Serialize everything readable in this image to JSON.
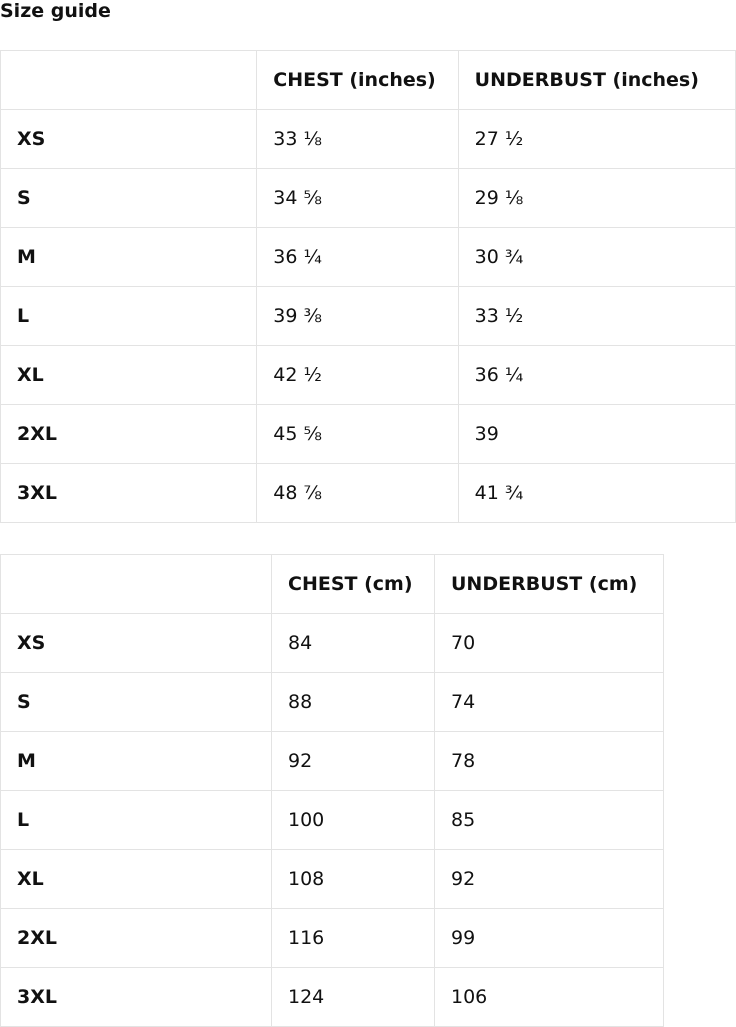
{
  "title": "Size guide",
  "inches_table": {
    "headers": [
      "",
      "CHEST (inches)",
      "UNDERBUST (inches)"
    ],
    "rows": [
      [
        "XS",
        "33 ⅛",
        "27 ½"
      ],
      [
        "S",
        "34 ⅝",
        "29 ⅛"
      ],
      [
        "M",
        "36 ¼",
        "30 ¾"
      ],
      [
        "L",
        "39 ⅜",
        "33 ½"
      ],
      [
        "XL",
        "42 ½",
        "36 ¼"
      ],
      [
        "2XL",
        "45 ⅝",
        "39"
      ],
      [
        "3XL",
        "48 ⅞",
        "41 ¾"
      ]
    ]
  },
  "cm_table": {
    "headers": [
      "",
      "CHEST (cm)",
      "UNDERBUST (cm)"
    ],
    "rows": [
      [
        "XS",
        "84",
        "70"
      ],
      [
        "S",
        "88",
        "74"
      ],
      [
        "M",
        "92",
        "78"
      ],
      [
        "L",
        "100",
        "85"
      ],
      [
        "XL",
        "108",
        "92"
      ],
      [
        "2XL",
        "116",
        "99"
      ],
      [
        "3XL",
        "124",
        "106"
      ]
    ]
  }
}
